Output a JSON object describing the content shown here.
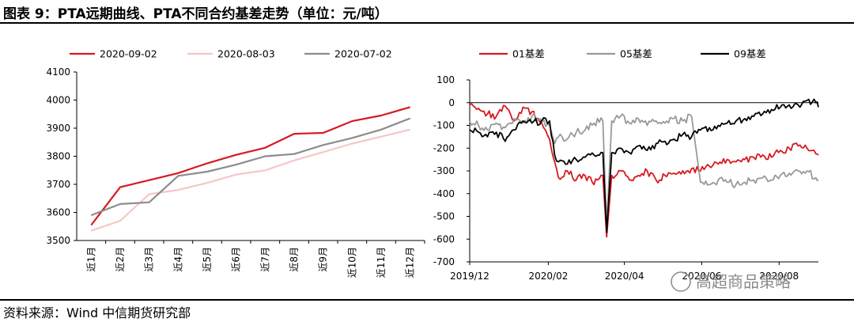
{
  "header": {
    "title": "图表 9：PTA远期曲线、PTA不同合约基差走势（单位：元/吨）"
  },
  "footer": {
    "source": "资料来源：Wind 中信期货研究部"
  },
  "watermark": {
    "text": "高超商品策略"
  },
  "chart_data": [
    {
      "type": "line",
      "title": "PTA远期曲线",
      "categories": [
        "近1月",
        "近2月",
        "近3月",
        "近4月",
        "近5月",
        "近6月",
        "近7月",
        "近8月",
        "近9月",
        "近10月",
        "近11月",
        "近12月"
      ],
      "ylim": [
        3500,
        4100
      ],
      "yticks": [
        3500,
        3600,
        3700,
        3800,
        3900,
        4000,
        4100
      ],
      "legend_position": "top",
      "series": [
        {
          "name": "2020-09-02",
          "color": "#d71920",
          "values": [
            3555,
            3690,
            3715,
            3740,
            3775,
            3805,
            3830,
            3880,
            3883,
            3925,
            3945,
            3975
          ]
        },
        {
          "name": "2020-08-03",
          "color": "#f4c8c6",
          "values": [
            3535,
            3570,
            3665,
            3680,
            3705,
            3735,
            3750,
            3785,
            3815,
            3845,
            3870,
            3895
          ]
        },
        {
          "name": "2020-07-02",
          "color": "#8c8c8c",
          "values": [
            3590,
            3630,
            3636,
            3730,
            3745,
            3770,
            3800,
            3808,
            3840,
            3865,
            3895,
            3935
          ]
        }
      ]
    },
    {
      "type": "line",
      "title": "PTA不同合约基差走势",
      "x_range": [
        "2019-12-02",
        "2020-09-02"
      ],
      "xticks": [
        {
          "date": "2019-12-02",
          "label": "2019/12"
        },
        {
          "date": "2020-02-02",
          "label": "2020/02"
        },
        {
          "date": "2020-04-02",
          "label": "2020/04"
        },
        {
          "date": "2020-06-02",
          "label": "2020/06"
        },
        {
          "date": "2020-08-02",
          "label": "2020/08"
        }
      ],
      "ylim": [
        -700,
        100
      ],
      "yticks": [
        100,
        0,
        -100,
        -200,
        -300,
        -400,
        -500,
        -600,
        -700
      ],
      "legend_position": "top",
      "series": [
        {
          "name": "01基差",
          "color": "#d71920",
          "points": [
            [
              "2019-12-02",
              -10
            ],
            [
              "2019-12-09",
              -25
            ],
            [
              "2019-12-16",
              -50
            ],
            [
              "2019-12-23",
              -60
            ],
            [
              "2019-12-30",
              -15
            ],
            [
              "2020-01-06",
              -80
            ],
            [
              "2020-01-13",
              -20
            ],
            [
              "2020-01-20",
              -40
            ],
            [
              "2020-02-03",
              -160
            ],
            [
              "2020-02-07",
              -260
            ],
            [
              "2020-02-10",
              -330
            ],
            [
              "2020-02-17",
              -300
            ],
            [
              "2020-02-24",
              -340
            ],
            [
              "2020-03-02",
              -320
            ],
            [
              "2020-03-09",
              -360
            ],
            [
              "2020-03-16",
              -320
            ],
            [
              "2020-03-19",
              -590
            ],
            [
              "2020-03-23",
              -320
            ],
            [
              "2020-03-30",
              -300
            ],
            [
              "2020-04-06",
              -340
            ],
            [
              "2020-04-13",
              -320
            ],
            [
              "2020-04-20",
              -300
            ],
            [
              "2020-04-27",
              -340
            ],
            [
              "2020-05-04",
              -320
            ],
            [
              "2020-05-11",
              -310
            ],
            [
              "2020-05-18",
              -300
            ],
            [
              "2020-05-25",
              -290
            ],
            [
              "2020-06-01",
              -300
            ],
            [
              "2020-06-08",
              -280
            ],
            [
              "2020-06-15",
              -270
            ],
            [
              "2020-06-22",
              -250
            ],
            [
              "2020-06-29",
              -260
            ],
            [
              "2020-07-06",
              -250
            ],
            [
              "2020-07-13",
              -240
            ],
            [
              "2020-07-20",
              -230
            ],
            [
              "2020-07-27",
              -240
            ],
            [
              "2020-08-03",
              -210
            ],
            [
              "2020-08-10",
              -200
            ],
            [
              "2020-08-17",
              -190
            ],
            [
              "2020-08-24",
              -200
            ],
            [
              "2020-08-31",
              -225
            ],
            [
              "2020-09-02",
              -230
            ]
          ]
        },
        {
          "name": "05基差",
          "color": "#999999",
          "points": [
            [
              "2019-12-02",
              -80
            ],
            [
              "2019-12-09",
              -100
            ],
            [
              "2019-12-16",
              -120
            ],
            [
              "2019-12-23",
              -90
            ],
            [
              "2019-12-30",
              -110
            ],
            [
              "2020-01-06",
              -70
            ],
            [
              "2020-01-13",
              -90
            ],
            [
              "2020-01-20",
              -60
            ],
            [
              "2020-02-03",
              -100
            ],
            [
              "2020-02-07",
              -180
            ],
            [
              "2020-02-10",
              -150
            ],
            [
              "2020-02-17",
              -160
            ],
            [
              "2020-02-24",
              -130
            ],
            [
              "2020-03-02",
              -120
            ],
            [
              "2020-03-09",
              -90
            ],
            [
              "2020-03-16",
              -80
            ],
            [
              "2020-03-19",
              -550
            ],
            [
              "2020-03-23",
              -80
            ],
            [
              "2020-03-30",
              -60
            ],
            [
              "2020-04-06",
              -90
            ],
            [
              "2020-04-13",
              -70
            ],
            [
              "2020-04-20",
              -100
            ],
            [
              "2020-04-27",
              -80
            ],
            [
              "2020-05-04",
              -90
            ],
            [
              "2020-05-11",
              -70
            ],
            [
              "2020-05-18",
              -80
            ],
            [
              "2020-05-25",
              -60
            ],
            [
              "2020-06-01",
              -350
            ],
            [
              "2020-06-08",
              -360
            ],
            [
              "2020-06-15",
              -340
            ],
            [
              "2020-06-22",
              -350
            ],
            [
              "2020-06-29",
              -360
            ],
            [
              "2020-07-06",
              -350
            ],
            [
              "2020-07-13",
              -340
            ],
            [
              "2020-07-20",
              -330
            ],
            [
              "2020-07-27",
              -340
            ],
            [
              "2020-08-03",
              -320
            ],
            [
              "2020-08-10",
              -310
            ],
            [
              "2020-08-17",
              -300
            ],
            [
              "2020-08-24",
              -300
            ],
            [
              "2020-08-31",
              -330
            ],
            [
              "2020-09-02",
              -340
            ]
          ]
        },
        {
          "name": "09基差",
          "color": "#000000",
          "points": [
            [
              "2019-12-02",
              -120
            ],
            [
              "2019-12-09",
              -130
            ],
            [
              "2019-12-16",
              -150
            ],
            [
              "2019-12-23",
              -130
            ],
            [
              "2019-12-30",
              -170
            ],
            [
              "2020-01-06",
              -120
            ],
            [
              "2020-01-13",
              -80
            ],
            [
              "2020-01-20",
              -90
            ],
            [
              "2020-02-03",
              -80
            ],
            [
              "2020-02-07",
              -230
            ],
            [
              "2020-02-10",
              -260
            ],
            [
              "2020-02-17",
              -270
            ],
            [
              "2020-02-24",
              -250
            ],
            [
              "2020-03-02",
              -240
            ],
            [
              "2020-03-09",
              -230
            ],
            [
              "2020-03-16",
              -220
            ],
            [
              "2020-03-19",
              -570
            ],
            [
              "2020-03-23",
              -220
            ],
            [
              "2020-03-30",
              -200
            ],
            [
              "2020-04-06",
              -220
            ],
            [
              "2020-04-13",
              -190
            ],
            [
              "2020-04-20",
              -210
            ],
            [
              "2020-04-27",
              -180
            ],
            [
              "2020-05-04",
              -170
            ],
            [
              "2020-05-11",
              -160
            ],
            [
              "2020-05-18",
              -140
            ],
            [
              "2020-05-25",
              -150
            ],
            [
              "2020-06-01",
              -120
            ],
            [
              "2020-06-08",
              -110
            ],
            [
              "2020-06-15",
              -100
            ],
            [
              "2020-06-22",
              -90
            ],
            [
              "2020-06-29",
              -80
            ],
            [
              "2020-07-06",
              -70
            ],
            [
              "2020-07-13",
              -60
            ],
            [
              "2020-07-20",
              -50
            ],
            [
              "2020-07-27",
              -30
            ],
            [
              "2020-08-03",
              -20
            ],
            [
              "2020-08-10",
              -10
            ],
            [
              "2020-08-17",
              -10
            ],
            [
              "2020-08-24",
              10
            ],
            [
              "2020-08-31",
              0
            ],
            [
              "2020-09-02",
              -20
            ]
          ]
        }
      ]
    }
  ]
}
